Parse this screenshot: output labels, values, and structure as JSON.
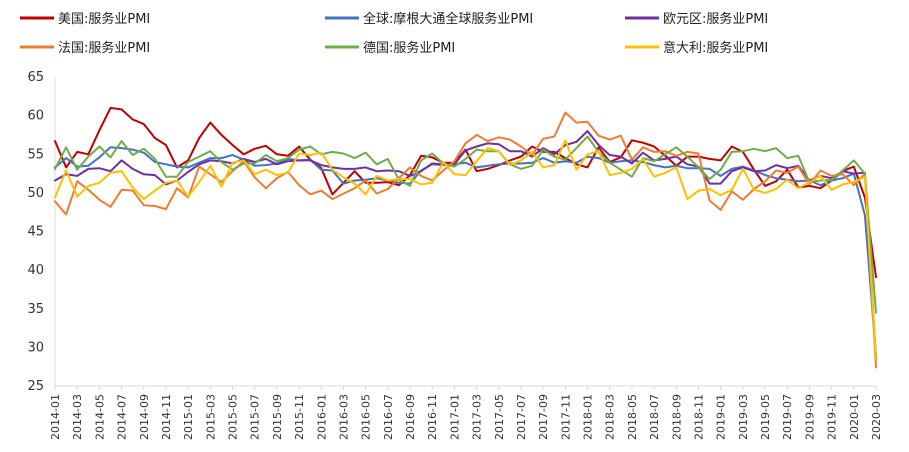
{
  "chart_data": {
    "type": "line",
    "x": [
      "2014-01",
      "2014-02",
      "2014-03",
      "2014-04",
      "2014-05",
      "2014-06",
      "2014-07",
      "2014-08",
      "2014-09",
      "2014-10",
      "2014-11",
      "2014-12",
      "2015-01",
      "2015-02",
      "2015-03",
      "2015-04",
      "2015-05",
      "2015-06",
      "2015-07",
      "2015-08",
      "2015-09",
      "2015-10",
      "2015-11",
      "2015-12",
      "2016-01",
      "2016-02",
      "2016-03",
      "2016-04",
      "2016-05",
      "2016-06",
      "2016-07",
      "2016-08",
      "2016-09",
      "2016-10",
      "2016-11",
      "2016-12",
      "2017-01",
      "2017-02",
      "2017-03",
      "2017-04",
      "2017-05",
      "2017-06",
      "2017-07",
      "2017-08",
      "2017-09",
      "2017-10",
      "2017-11",
      "2017-12",
      "2018-01",
      "2018-02",
      "2018-03",
      "2018-04",
      "2018-05",
      "2018-06",
      "2018-07",
      "2018-08",
      "2018-09",
      "2018-10",
      "2018-11",
      "2018-12",
      "2019-01",
      "2019-02",
      "2019-03",
      "2019-04",
      "2019-05",
      "2019-06",
      "2019-07",
      "2019-08",
      "2019-09",
      "2019-10",
      "2019-11",
      "2019-12",
      "2020-01",
      "2020-02",
      "2020-03"
    ],
    "x_tick_labels": [
      "2014-01",
      "2014-03",
      "2014-05",
      "2014-07",
      "2014-09",
      "2014-11",
      "2015-01",
      "2015-03",
      "2015-05",
      "2015-07",
      "2015-09",
      "2015-11",
      "2016-01",
      "2016-03",
      "2016-05",
      "2016-07",
      "2016-09",
      "2016-11",
      "2017-01",
      "2017-03",
      "2017-05",
      "2017-07",
      "2017-09",
      "2017-11",
      "2018-01",
      "2018-03",
      "2018-05",
      "2018-07",
      "2018-09",
      "2018-11",
      "2019-01",
      "2019-03",
      "2019-05",
      "2019-07",
      "2019-09",
      "2019-11",
      "2020-01",
      "2020-03"
    ],
    "ylim": [
      25,
      65
    ],
    "y_ticks": [
      25,
      30,
      35,
      40,
      45,
      50,
      55,
      60,
      65
    ],
    "grid": false,
    "legend_position": "top",
    "series": [
      {
        "name": "美国:服务业PMI",
        "color": "#c00000",
        "values": [
          56.7,
          53.3,
          55.3,
          55.0,
          58.1,
          61.0,
          60.8,
          59.5,
          58.9,
          57.1,
          56.2,
          53.3,
          54.2,
          57.1,
          59.1,
          57.5,
          56.2,
          55.0,
          55.7,
          56.1,
          55.0,
          54.8,
          56.0,
          54.3,
          53.2,
          49.8,
          51.3,
          52.8,
          51.3,
          51.3,
          51.4,
          51.0,
          52.3,
          54.8,
          54.6,
          53.9,
          53.9,
          55.6,
          52.8,
          53.1,
          53.6,
          54.2,
          54.7,
          56.0,
          55.3,
          55.3,
          54.5,
          53.7,
          53.3,
          55.9,
          54.0,
          54.6,
          56.8,
          56.5,
          56.0,
          54.8,
          53.5,
          54.7,
          54.7,
          54.4,
          54.2,
          56.0,
          55.3,
          53.0,
          50.9,
          51.5,
          53.0,
          50.7,
          50.9,
          50.6,
          51.6,
          52.8,
          53.4,
          49.4,
          39.1
        ]
      },
      {
        "name": "全球:摩根大通全球服务业PMI",
        "color": "#4472c4",
        "values": [
          53.3,
          54.5,
          53.4,
          53.5,
          54.6,
          55.9,
          55.8,
          55.6,
          55.2,
          54.0,
          53.7,
          53.4,
          53.3,
          53.9,
          54.5,
          54.5,
          54.9,
          54.3,
          53.5,
          53.6,
          53.8,
          54.4,
          54.2,
          54.3,
          53.0,
          52.9,
          51.2,
          51.6,
          51.7,
          51.9,
          51.6,
          51.3,
          51.2,
          52.9,
          53.7,
          53.6,
          53.7,
          53.9,
          53.3,
          53.5,
          53.7,
          53.8,
          53.8,
          53.9,
          54.5,
          53.9,
          54.1,
          53.9,
          54.7,
          54.5,
          53.9,
          54.1,
          54.2,
          54.0,
          53.6,
          53.3,
          53.5,
          53.2,
          53.2,
          53.1,
          52.2,
          53.1,
          53.4,
          52.9,
          52.3,
          51.9,
          51.7,
          51.5,
          51.6,
          51.0,
          51.6,
          51.9,
          52.5,
          47.1,
          28.9
        ]
      },
      {
        "name": "欧元区:服务业PMI",
        "color": "#7030a0",
        "values": [
          51.6,
          52.4,
          52.2,
          53.1,
          53.2,
          52.8,
          54.2,
          53.1,
          52.4,
          52.3,
          51.1,
          51.6,
          52.7,
          53.7,
          54.2,
          54.1,
          53.8,
          54.4,
          54.0,
          54.4,
          53.7,
          54.1,
          54.2,
          54.2,
          53.6,
          53.3,
          53.1,
          53.1,
          53.3,
          52.8,
          52.9,
          52.8,
          52.2,
          52.8,
          53.8,
          53.7,
          53.7,
          55.5,
          56.0,
          56.4,
          56.3,
          55.4,
          55.4,
          54.7,
          55.8,
          55.0,
          56.2,
          56.6,
          58.0,
          56.2,
          54.9,
          54.7,
          53.8,
          55.2,
          54.2,
          54.4,
          54.7,
          53.7,
          53.4,
          51.2,
          51.2,
          52.8,
          53.3,
          52.8,
          52.9,
          53.6,
          53.2,
          53.5,
          51.6,
          52.2,
          51.9,
          52.8,
          52.5,
          52.6,
          28.4
        ]
      },
      {
        "name": "法国:服务业PMI",
        "color": "#ed7d31",
        "values": [
          48.9,
          47.2,
          51.5,
          50.4,
          49.1,
          48.2,
          50.4,
          50.3,
          48.4,
          48.3,
          47.9,
          50.6,
          49.4,
          53.4,
          52.4,
          51.4,
          52.8,
          54.1,
          52.0,
          50.6,
          51.9,
          52.7,
          51.0,
          49.8,
          50.3,
          49.2,
          49.9,
          50.6,
          51.6,
          49.9,
          50.5,
          51.9,
          53.3,
          52.2,
          51.6,
          52.9,
          54.1,
          56.4,
          57.5,
          56.7,
          57.2,
          56.9,
          56.0,
          54.9,
          57.0,
          57.3,
          60.4,
          59.1,
          59.2,
          57.4,
          56.9,
          57.4,
          54.3,
          55.9,
          55.3,
          55.4,
          54.8,
          55.3,
          55.1,
          49.0,
          47.8,
          50.2,
          49.1,
          50.5,
          51.5,
          52.9,
          52.6,
          53.4,
          51.1,
          52.9,
          52.2,
          52.4,
          51.0,
          52.5,
          27.4
        ]
      },
      {
        "name": "德国:服务业PMI",
        "color": "#70ad47",
        "values": [
          53.1,
          55.9,
          53.0,
          54.7,
          56.0,
          54.6,
          56.7,
          54.9,
          55.7,
          54.4,
          52.1,
          52.1,
          54.0,
          54.7,
          55.4,
          54.0,
          53.0,
          53.8,
          53.8,
          54.9,
          54.1,
          54.5,
          55.6,
          56.0,
          55.0,
          55.3,
          55.1,
          54.5,
          55.2,
          53.7,
          54.4,
          51.7,
          50.9,
          54.2,
          55.1,
          53.8,
          53.4,
          54.4,
          55.6,
          55.4,
          55.4,
          53.7,
          53.1,
          53.5,
          55.6,
          54.7,
          54.3,
          55.8,
          57.3,
          55.3,
          53.9,
          53.0,
          52.1,
          54.5,
          54.1,
          55.0,
          55.9,
          54.7,
          53.3,
          51.8,
          53.0,
          55.3,
          55.4,
          55.7,
          55.4,
          55.8,
          54.5,
          54.8,
          51.4,
          51.6,
          51.7,
          52.9,
          54.2,
          52.5,
          34.5
        ]
      },
      {
        "name": "意大利:服务业PMI",
        "color": "#ffc000",
        "values": [
          49.4,
          52.9,
          49.5,
          50.9,
          51.3,
          52.6,
          52.8,
          50.7,
          49.2,
          50.3,
          51.3,
          51.6,
          49.5,
          51.4,
          53.5,
          50.8,
          53.9,
          54.2,
          52.4,
          53.0,
          52.3,
          52.6,
          55.1,
          54.9,
          55.2,
          53.0,
          52.0,
          51.2,
          49.8,
          52.2,
          51.6,
          51.8,
          51.8,
          51.1,
          51.3,
          54.0,
          52.4,
          52.3,
          54.1,
          55.8,
          55.4,
          53.6,
          54.2,
          55.3,
          53.3,
          53.6,
          56.8,
          53.0,
          55.0,
          55.4,
          52.3,
          52.6,
          53.1,
          54.4,
          52.1,
          52.6,
          53.3,
          49.2,
          50.3,
          50.5,
          49.7,
          50.4,
          53.1,
          50.4,
          50.0,
          50.5,
          51.7,
          50.6,
          51.4,
          52.2,
          50.4,
          51.1,
          51.4,
          52.1,
          28.5
        ]
      }
    ]
  }
}
